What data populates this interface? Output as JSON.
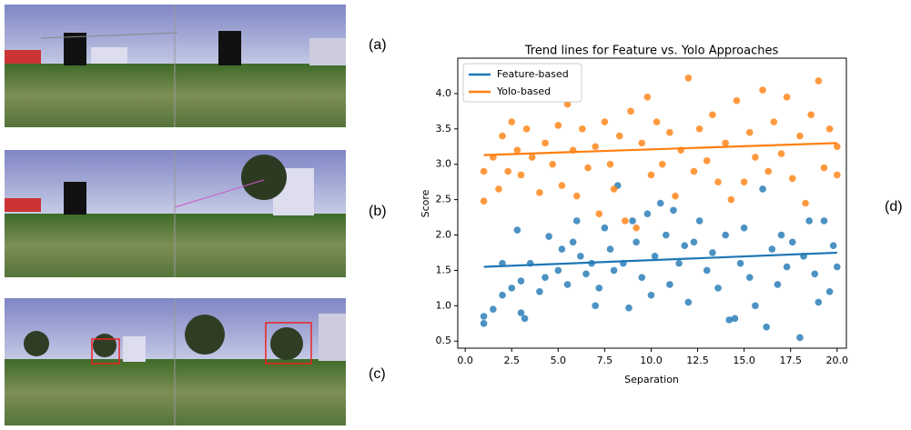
{
  "panel_labels": [
    "(a)",
    "(b)",
    "(c)",
    "(d)"
  ],
  "chart_data": {
    "type": "scatter",
    "title": "Trend lines for Feature vs. Yolo Approaches",
    "x_label": "Separation",
    "y_label": "Score",
    "xlim": [
      -0.4,
      20.5
    ],
    "ylim": [
      0.4,
      4.5
    ],
    "xticks": [
      {
        "value": 0,
        "label": "0.0"
      },
      2.5,
      {
        "value": 5,
        "label": "5.0"
      },
      7.5,
      {
        "value": 10,
        "label": "10.0"
      },
      12.5,
      {
        "value": 15,
        "label": "15.0"
      },
      17.5,
      {
        "value": 20,
        "label": "20.0"
      }
    ],
    "yticks": [
      0.5,
      {
        "value": 1,
        "label": "1.0"
      },
      1.5,
      {
        "value": 2,
        "label": "2.0"
      },
      2.5,
      {
        "value": 3,
        "label": "3.0"
      },
      3.5,
      {
        "value": 4,
        "label": "4.0"
      }
    ],
    "legend": "upper left",
    "series": [
      {
        "name": "Feature-based",
        "color": "#1f77b4",
        "x": [
          1,
          1,
          1.5,
          2,
          2,
          2.5,
          2.8,
          3,
          3,
          3.2,
          3.5,
          4,
          4.3,
          4.5,
          5,
          5.2,
          5.5,
          5.8,
          6,
          6.2,
          6.5,
          6.8,
          7,
          7.2,
          7.5,
          7.8,
          8,
          8.2,
          8.5,
          8.8,
          9,
          9.2,
          9.5,
          9.8,
          10,
          10.2,
          10.5,
          10.8,
          11,
          11.2,
          11.5,
          11.8,
          12,
          12.3,
          12.6,
          13,
          13.3,
          13.6,
          14,
          14.2,
          14.5,
          14.8,
          15,
          15.3,
          15.6,
          16,
          16.2,
          16.5,
          16.8,
          17,
          17.3,
          17.6,
          18,
          18.2,
          18.5,
          18.8,
          19,
          19.3,
          19.6,
          19.8,
          20
        ],
        "values": [
          0.75,
          0.85,
          0.95,
          1.6,
          1.15,
          1.25,
          2.07,
          1.35,
          0.9,
          0.82,
          1.6,
          1.2,
          1.4,
          1.98,
          1.5,
          1.8,
          1.3,
          1.9,
          2.2,
          1.7,
          1.45,
          1.6,
          1.0,
          1.25,
          2.1,
          1.8,
          1.5,
          2.7,
          1.6,
          0.97,
          2.2,
          1.9,
          1.4,
          2.3,
          1.15,
          1.7,
          2.45,
          2.0,
          1.3,
          2.35,
          1.6,
          1.85,
          1.05,
          1.9,
          2.2,
          1.5,
          1.75,
          1.25,
          2.0,
          0.8,
          0.82,
          1.6,
          2.1,
          1.4,
          1.0,
          2.65,
          0.7,
          1.8,
          1.3,
          2.0,
          1.55,
          1.9,
          0.55,
          1.7,
          2.2,
          1.45,
          1.05,
          2.2,
          1.2,
          1.85,
          1.55
        ],
        "trend": {
          "x": [
            1,
            20
          ],
          "values": [
            1.55,
            1.75
          ]
        }
      },
      {
        "name": "Yolo-based",
        "color": "#ff7f0e",
        "x": [
          1,
          1,
          1.5,
          1.8,
          2,
          2.3,
          2.5,
          2.8,
          3,
          3.3,
          3.6,
          4,
          4.3,
          4.7,
          5,
          5.2,
          5.5,
          5.8,
          6,
          6.3,
          6.6,
          7,
          7.2,
          7.5,
          7.8,
          8,
          8.3,
          8.6,
          8.9,
          9.2,
          9.5,
          9.8,
          10,
          10.3,
          10.6,
          11,
          11.3,
          11.6,
          12,
          12.3,
          12.6,
          13,
          13.3,
          13.6,
          14,
          14.3,
          14.6,
          15,
          15.3,
          15.6,
          16,
          16.3,
          16.6,
          17,
          17.3,
          17.6,
          18,
          18.3,
          18.6,
          19,
          19.3,
          19.6,
          20,
          20
        ],
        "values": [
          2.9,
          2.48,
          3.1,
          2.65,
          3.4,
          2.9,
          3.6,
          3.2,
          2.85,
          3.5,
          3.1,
          2.6,
          3.3,
          3.0,
          3.55,
          2.7,
          3.85,
          3.2,
          2.55,
          3.5,
          2.95,
          3.25,
          2.3,
          3.6,
          3.0,
          2.65,
          3.4,
          2.2,
          3.75,
          2.1,
          3.3,
          3.95,
          2.85,
          3.6,
          3.0,
          3.45,
          2.55,
          3.2,
          4.22,
          2.9,
          3.5,
          3.05,
          3.7,
          2.75,
          3.3,
          2.5,
          3.9,
          2.75,
          3.45,
          3.1,
          4.05,
          2.9,
          3.6,
          3.15,
          3.95,
          2.8,
          3.4,
          2.45,
          3.7,
          4.18,
          2.95,
          3.5,
          3.25,
          2.85
        ],
        "trend": {
          "x": [
            1,
            20
          ],
          "values": [
            3.13,
            3.3
          ]
        }
      }
    ]
  }
}
